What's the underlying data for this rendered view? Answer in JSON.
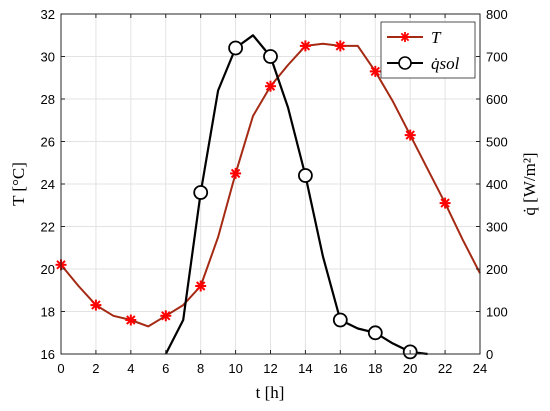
{
  "chart_data": {
    "type": "line",
    "xlabel": "t [h]",
    "ylabel_left": "T [°C]",
    "ylabel_right": "q̇ [W/m²]",
    "xlim": [
      0,
      24
    ],
    "ylim_left": [
      16,
      32
    ],
    "ylim_right": [
      0,
      800
    ],
    "x_ticks": [
      0,
      2,
      4,
      6,
      8,
      10,
      12,
      14,
      16,
      18,
      20,
      22,
      24
    ],
    "y_ticks_left": [
      16,
      18,
      20,
      22,
      24,
      26,
      28,
      30,
      32
    ],
    "y_ticks_right": [
      0,
      100,
      200,
      300,
      400,
      500,
      600,
      700,
      800
    ],
    "grid": true,
    "legend_position": "top-right",
    "series": [
      {
        "name": "T",
        "axis": "left",
        "color": "#a52a14",
        "marker": "asterisk",
        "marker_color": "#ff0000",
        "x": [
          0,
          1,
          2,
          3,
          4,
          5,
          6,
          7,
          8,
          9,
          10,
          11,
          12,
          13,
          14,
          15,
          16,
          17,
          18,
          19,
          20,
          21,
          22,
          23,
          24
        ],
        "y": [
          20.2,
          19.2,
          18.3,
          17.8,
          17.6,
          17.3,
          17.8,
          18.3,
          19.2,
          21.5,
          24.5,
          27.2,
          28.6,
          29.6,
          30.5,
          30.6,
          30.5,
          30.5,
          29.3,
          27.9,
          26.3,
          24.7,
          23.1,
          21.4,
          19.8
        ],
        "marker_x": [
          0,
          2,
          4,
          6,
          8,
          10,
          12,
          14,
          16,
          18,
          20,
          22
        ]
      },
      {
        "name": "q̇sol",
        "axis": "right",
        "color": "#000000",
        "marker": "circle",
        "x": [
          6,
          7,
          8,
          9,
          10,
          11,
          12,
          13,
          14,
          15,
          16,
          17,
          18,
          19,
          20,
          21
        ],
        "y": [
          0,
          80,
          380,
          620,
          720,
          750,
          700,
          580,
          420,
          230,
          80,
          60,
          50,
          25,
          5,
          0
        ],
        "marker_x": [
          8,
          10,
          12,
          14,
          16,
          18,
          20
        ]
      }
    ],
    "legend": {
      "entries": [
        "T",
        "q̇sol"
      ]
    }
  }
}
